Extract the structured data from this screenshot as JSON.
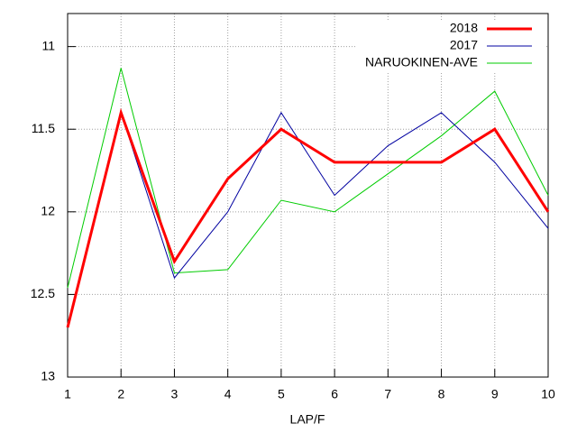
{
  "chart_data": {
    "type": "line",
    "xlabel": "LAP/F",
    "x": [
      1,
      2,
      3,
      4,
      5,
      6,
      7,
      8,
      9,
      10
    ],
    "xlim": [
      1,
      10
    ],
    "xticks": [
      1,
      2,
      3,
      4,
      5,
      6,
      7,
      8,
      9,
      10
    ],
    "ylim": [
      13,
      10.8
    ],
    "yticks": [
      11,
      11.5,
      12,
      12.5,
      13
    ],
    "grid": true,
    "legend": "top-right",
    "series": [
      {
        "name": "2018",
        "color": "#ff0000",
        "width": 3,
        "values": [
          12.7,
          11.4,
          12.3,
          11.8,
          11.5,
          11.7,
          11.7,
          11.7,
          11.5,
          12.0
        ]
      },
      {
        "name": "2017",
        "color": "#0000a0",
        "width": 1,
        "values": [
          12.7,
          11.4,
          12.4,
          12.0,
          11.4,
          11.9,
          11.6,
          11.4,
          11.7,
          12.1
        ]
      },
      {
        "name": "NARUOKINEN-AVE",
        "color": "#00cc00",
        "width": 1,
        "values": [
          12.46,
          11.13,
          12.37,
          12.35,
          11.93,
          12.0,
          11.77,
          11.54,
          11.27,
          11.9
        ]
      }
    ]
  }
}
